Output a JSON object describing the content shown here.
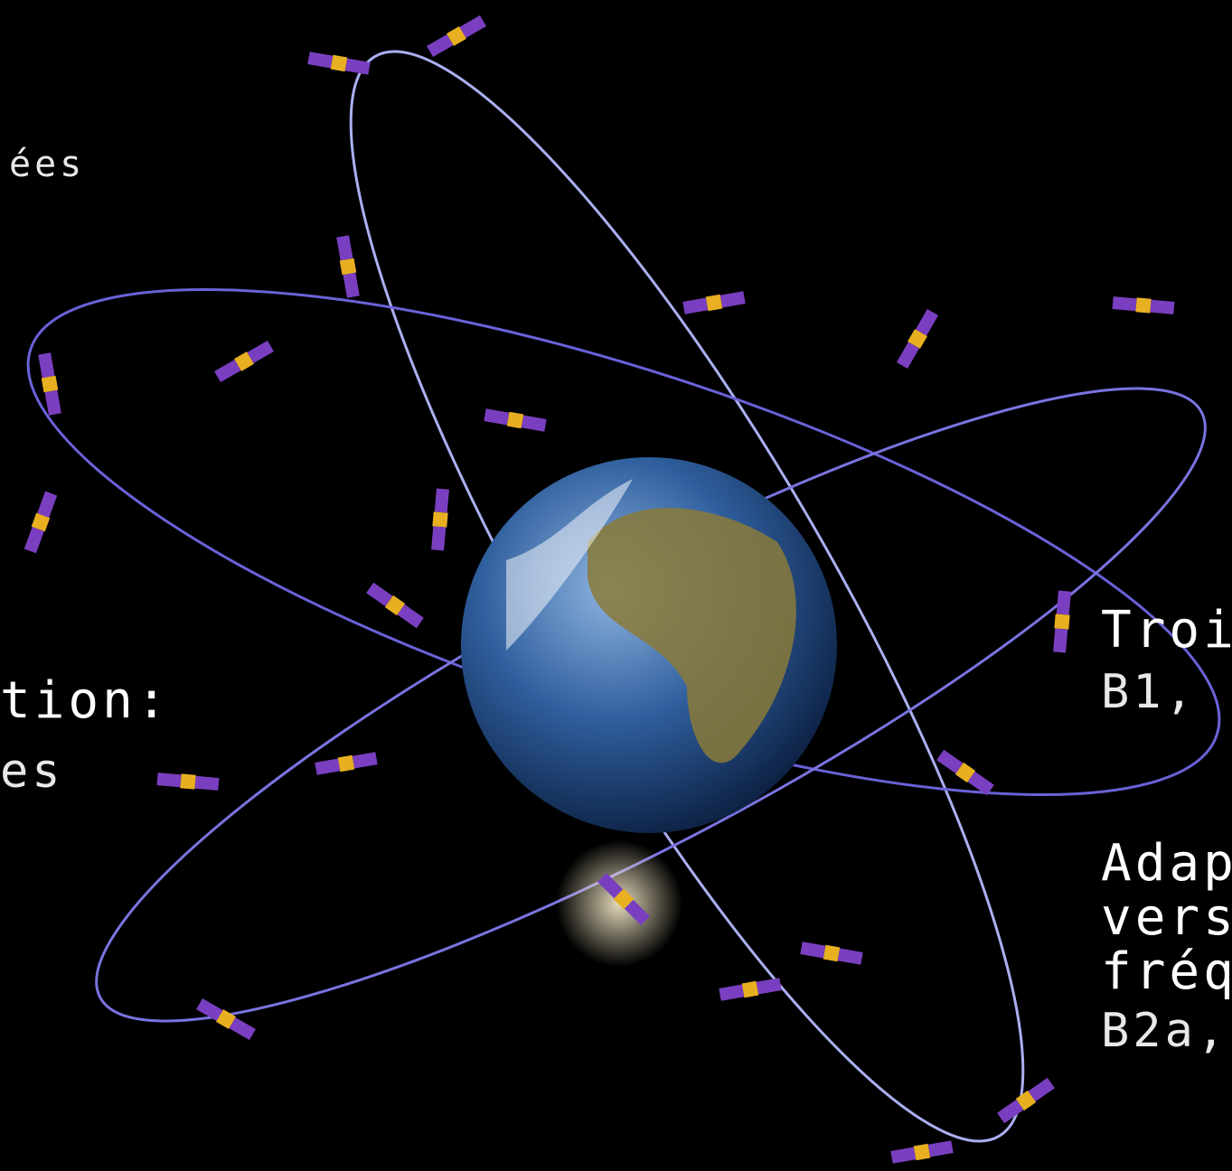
{
  "texts": {
    "top_left": "ées",
    "left_heading": "tion:",
    "left_body": "es",
    "right_heading": "Troi",
    "right_body": "B1,",
    "right2_lines": [
      "Adap",
      "vers",
      "fréq"
    ],
    "right2_body": "B2a,"
  }
}
